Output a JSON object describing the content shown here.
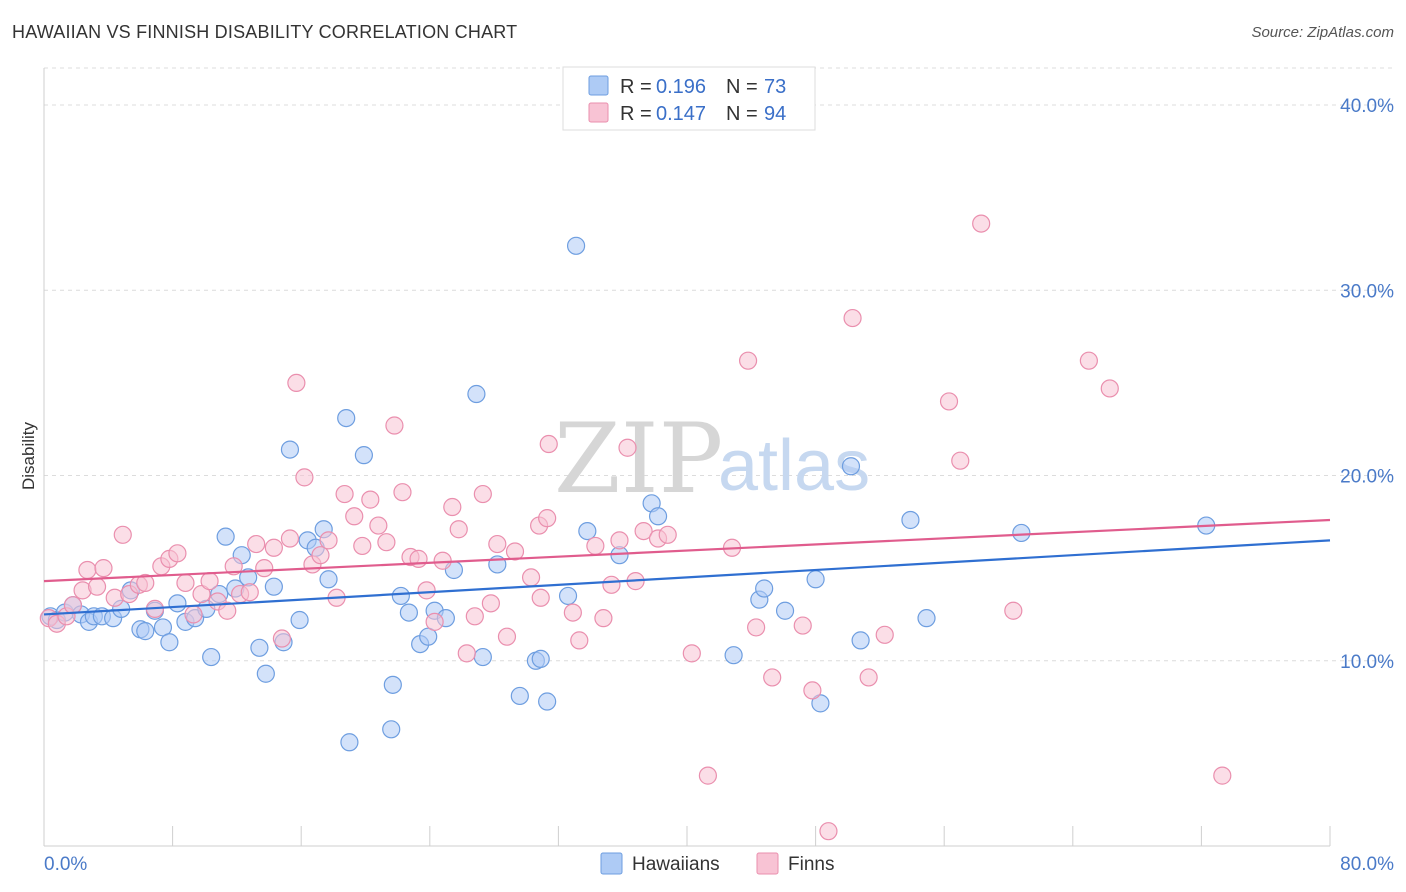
{
  "header": {
    "title": "HAWAIIAN VS FINNISH DISABILITY CORRELATION CHART",
    "source": "Source: ZipAtlas.com"
  },
  "watermark": {
    "zip": "ZIP",
    "atlas": "atlas"
  },
  "legend": {
    "rows": [
      {
        "r_label": "R =",
        "r_value": "0.196",
        "n_label": "N =",
        "n_value": "73",
        "color": "#aecbf5",
        "stroke": "#6e9ee0"
      },
      {
        "r_label": "R =",
        "r_value": "0.147",
        "n_label": "N =",
        "n_value": "94",
        "color": "#f8c3d4",
        "stroke": "#ea8fae"
      }
    ]
  },
  "bottom_legend": [
    "Hawaiians",
    "Finns"
  ],
  "chart_data": {
    "type": "scatter",
    "title": "HAWAIIAN VS FINNISH DISABILITY CORRELATION CHART",
    "xlabel": "",
    "ylabel": "Disability",
    "xlim": [
      0,
      80
    ],
    "ylim": [
      0,
      42
    ],
    "x_tick_labels": [
      "0.0%",
      "80.0%"
    ],
    "y_ticks": [
      10,
      20,
      30,
      40
    ],
    "y_tick_labels": [
      "10.0%",
      "20.0%",
      "30.0%",
      "40.0%"
    ],
    "grid": true,
    "legend_position": "top-center",
    "series": [
      {
        "name": "Hawaiians",
        "color": "#6e9ee0",
        "fill": "#aecbf5",
        "trend": {
          "x": [
            0,
            80
          ],
          "y": [
            12.5,
            16.5
          ],
          "color": "#2f6fd1"
        },
        "points": [
          [
            0.4,
            12.4
          ],
          [
            0.8,
            12.2
          ],
          [
            1.3,
            12.6
          ],
          [
            1.8,
            13.0
          ],
          [
            2.3,
            12.5
          ],
          [
            2.8,
            12.1
          ],
          [
            3.1,
            12.4
          ],
          [
            3.6,
            12.4
          ],
          [
            4.3,
            12.3
          ],
          [
            4.8,
            12.8
          ],
          [
            5.4,
            13.8
          ],
          [
            6.0,
            11.7
          ],
          [
            6.3,
            11.6
          ],
          [
            6.9,
            12.7
          ],
          [
            7.4,
            11.8
          ],
          [
            7.8,
            11.0
          ],
          [
            8.3,
            13.1
          ],
          [
            8.8,
            12.1
          ],
          [
            9.4,
            12.3
          ],
          [
            10.1,
            12.8
          ],
          [
            10.4,
            10.2
          ],
          [
            10.9,
            13.6
          ],
          [
            11.3,
            16.7
          ],
          [
            11.9,
            13.9
          ],
          [
            12.3,
            15.7
          ],
          [
            12.7,
            14.5
          ],
          [
            13.4,
            10.7
          ],
          [
            13.8,
            9.3
          ],
          [
            14.3,
            14.0
          ],
          [
            14.9,
            11.0
          ],
          [
            15.3,
            21.4
          ],
          [
            15.9,
            12.2
          ],
          [
            16.4,
            16.5
          ],
          [
            16.9,
            16.1
          ],
          [
            17.4,
            17.1
          ],
          [
            17.7,
            14.4
          ],
          [
            18.8,
            23.1
          ],
          [
            19.0,
            5.6
          ],
          [
            19.9,
            21.1
          ],
          [
            21.6,
            6.3
          ],
          [
            21.7,
            8.7
          ],
          [
            22.2,
            13.5
          ],
          [
            22.7,
            12.6
          ],
          [
            23.4,
            10.9
          ],
          [
            23.9,
            11.3
          ],
          [
            24.3,
            12.7
          ],
          [
            25.0,
            12.3
          ],
          [
            25.5,
            14.9
          ],
          [
            26.9,
            24.4
          ],
          [
            27.3,
            10.2
          ],
          [
            28.2,
            15.2
          ],
          [
            29.6,
            8.1
          ],
          [
            30.6,
            10.0
          ],
          [
            30.9,
            10.1
          ],
          [
            31.3,
            7.8
          ],
          [
            32.6,
            13.5
          ],
          [
            33.1,
            32.4
          ],
          [
            33.8,
            17.0
          ],
          [
            35.8,
            15.7
          ],
          [
            37.8,
            18.5
          ],
          [
            38.2,
            17.8
          ],
          [
            42.9,
            10.3
          ],
          [
            44.5,
            13.3
          ],
          [
            44.8,
            13.9
          ],
          [
            46.1,
            12.7
          ],
          [
            48.0,
            14.4
          ],
          [
            48.3,
            7.7
          ],
          [
            50.2,
            20.5
          ],
          [
            50.8,
            11.1
          ],
          [
            53.9,
            17.6
          ],
          [
            54.9,
            12.3
          ],
          [
            60.8,
            16.9
          ],
          [
            72.3,
            17.3
          ]
        ]
      },
      {
        "name": "Finns",
        "color": "#ea8fae",
        "fill": "#f8c3d4",
        "trend": {
          "x": [
            0,
            80
          ],
          "y": [
            14.3,
            17.6
          ],
          "color": "#e05c8d"
        },
        "points": [
          [
            0.3,
            12.3
          ],
          [
            0.8,
            12.0
          ],
          [
            1.4,
            12.4
          ],
          [
            1.8,
            13.0
          ],
          [
            2.4,
            13.8
          ],
          [
            2.7,
            14.9
          ],
          [
            3.3,
            14.0
          ],
          [
            3.7,
            15.0
          ],
          [
            4.4,
            13.4
          ],
          [
            4.9,
            16.8
          ],
          [
            5.3,
            13.6
          ],
          [
            5.9,
            14.1
          ],
          [
            6.3,
            14.2
          ],
          [
            6.9,
            12.8
          ],
          [
            7.3,
            15.1
          ],
          [
            7.8,
            15.5
          ],
          [
            8.3,
            15.8
          ],
          [
            8.8,
            14.2
          ],
          [
            9.3,
            12.5
          ],
          [
            9.8,
            13.6
          ],
          [
            10.3,
            14.3
          ],
          [
            10.8,
            13.2
          ],
          [
            11.4,
            12.7
          ],
          [
            11.8,
            15.1
          ],
          [
            12.2,
            13.6
          ],
          [
            12.8,
            13.7
          ],
          [
            13.2,
            16.3
          ],
          [
            13.7,
            15.0
          ],
          [
            14.3,
            16.1
          ],
          [
            14.8,
            11.2
          ],
          [
            15.3,
            16.6
          ],
          [
            15.7,
            25.0
          ],
          [
            16.2,
            19.9
          ],
          [
            16.7,
            15.2
          ],
          [
            17.2,
            15.7
          ],
          [
            17.7,
            16.5
          ],
          [
            18.2,
            13.4
          ],
          [
            18.7,
            19.0
          ],
          [
            19.3,
            17.8
          ],
          [
            19.8,
            16.2
          ],
          [
            20.3,
            18.7
          ],
          [
            20.8,
            17.3
          ],
          [
            21.3,
            16.4
          ],
          [
            21.8,
            22.7
          ],
          [
            22.3,
            19.1
          ],
          [
            22.8,
            15.6
          ],
          [
            23.3,
            15.5
          ],
          [
            23.8,
            13.8
          ],
          [
            24.3,
            12.1
          ],
          [
            24.8,
            15.4
          ],
          [
            25.4,
            18.3
          ],
          [
            25.8,
            17.1
          ],
          [
            26.3,
            10.4
          ],
          [
            26.8,
            12.4
          ],
          [
            27.3,
            19.0
          ],
          [
            27.8,
            13.1
          ],
          [
            28.2,
            16.3
          ],
          [
            28.8,
            11.3
          ],
          [
            29.3,
            15.9
          ],
          [
            30.3,
            14.5
          ],
          [
            30.8,
            17.3
          ],
          [
            31.3,
            17.7
          ],
          [
            31.4,
            21.7
          ],
          [
            32.9,
            12.6
          ],
          [
            33.3,
            11.1
          ],
          [
            34.3,
            16.2
          ],
          [
            34.8,
            12.3
          ],
          [
            35.3,
            14.1
          ],
          [
            35.8,
            16.5
          ],
          [
            36.3,
            21.5
          ],
          [
            36.8,
            14.3
          ],
          [
            37.3,
            17.0
          ],
          [
            38.2,
            16.6
          ],
          [
            38.8,
            16.8
          ],
          [
            40.3,
            10.4
          ],
          [
            41.3,
            3.8
          ],
          [
            42.8,
            16.1
          ],
          [
            43.8,
            26.2
          ],
          [
            44.3,
            11.8
          ],
          [
            45.3,
            9.1
          ],
          [
            47.8,
            8.4
          ],
          [
            48.8,
            0.8
          ],
          [
            50.3,
            28.5
          ],
          [
            51.3,
            9.1
          ],
          [
            52.3,
            11.4
          ],
          [
            56.3,
            24.0
          ],
          [
            57.0,
            20.8
          ],
          [
            58.3,
            33.6
          ],
          [
            60.3,
            12.7
          ],
          [
            65.0,
            26.2
          ],
          [
            66.3,
            24.7
          ],
          [
            73.3,
            3.8
          ],
          [
            47.2,
            11.9
          ],
          [
            30.9,
            13.4
          ]
        ]
      }
    ]
  }
}
